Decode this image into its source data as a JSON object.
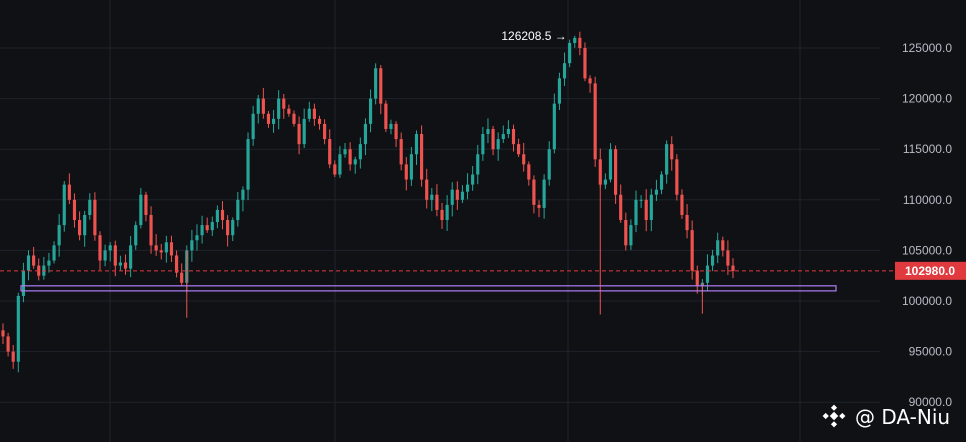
{
  "chart_data": {
    "type": "candlestick",
    "title": "",
    "xlabel": "",
    "ylabel": "",
    "ylim": [
      88000,
      128000
    ],
    "y_ticks": [
      "90000.0",
      "95000.0",
      "100000.0",
      "105000.0",
      "110000.0",
      "115000.0",
      "120000.0",
      "125000.0"
    ],
    "grid": true,
    "last_price": 102980,
    "last_price_label": "102980.0",
    "high_annotation": {
      "value": 126208.5,
      "label": "126208.5"
    },
    "support_zone": [
      101000,
      101500
    ],
    "colors": {
      "up": "#26a69a",
      "down": "#ef5350",
      "support": "#b07cf5",
      "background": "#0f1115",
      "grid": "#1f232b",
      "price_tag": "#e0393e"
    },
    "series": [
      {
        "name": "",
        "closes": [
          96500,
          95000,
          94000,
          100500,
          103000,
          104500,
          103500,
          102500,
          103500,
          104000,
          105500,
          107500,
          111500,
          110000,
          108000,
          106500,
          108500,
          110000,
          106500,
          104000,
          105000,
          105500,
          103500,
          103800,
          103200,
          105500,
          107500,
          110500,
          108500,
          105500,
          105000,
          104800,
          105800,
          104500,
          102800,
          101800,
          105000,
          106000,
          106500,
          107500,
          107000,
          107800,
          109000,
          108000,
          106500,
          108000,
          110000,
          111000,
          116000,
          118500,
          120000,
          118500,
          117500,
          118000,
          120000,
          119000,
          118500,
          117500,
          115500,
          118000,
          119000,
          118000,
          117500,
          116000,
          113500,
          112500,
          114500,
          115000,
          113500,
          114000,
          115500,
          117500,
          120000,
          123000,
          119500,
          117000,
          117500,
          116000,
          113500,
          112000,
          114500,
          116500,
          112000,
          110000,
          110500,
          109000,
          108000,
          109500,
          111000,
          110000,
          110800,
          111500,
          112500,
          114500,
          116500,
          117000,
          115000,
          116000,
          116500,
          117000,
          115500,
          114500,
          113500,
          112000,
          109500,
          109200,
          112000,
          115000,
          119500,
          122000,
          123500,
          125500,
          126000,
          125000,
          122000,
          121500,
          114000,
          111500,
          112000,
          115000,
          110500,
          108000,
          105500,
          107500,
          110000,
          110000,
          108000,
          110500,
          111000,
          112500,
          115500,
          114000,
          110500,
          108500,
          107000,
          103000,
          101500,
          101800,
          103500,
          104500,
          106000,
          105000,
          103500,
          102980
        ]
      }
    ]
  },
  "watermark": {
    "icon": "binance-diamond-logo",
    "text": "@ DA-Niu"
  }
}
